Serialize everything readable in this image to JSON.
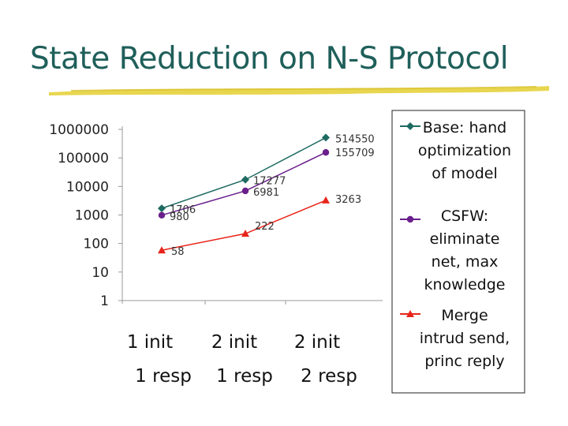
{
  "slide": {
    "title": "State Reduction on N-S Protocol"
  },
  "colors": {
    "title": "#1f5f5a",
    "underline": "#e6d23c",
    "base_series": "#1e6b62",
    "csfw_series": "#6a1f8c",
    "merge_series": "#e8241a"
  },
  "chart_data": {
    "type": "line",
    "y_scale": "log",
    "ylim": [
      1,
      1000000
    ],
    "y_tick_labels": [
      "1",
      "10",
      "100",
      "1000",
      "10000",
      "100000",
      "1000000"
    ],
    "categories": [
      [
        "1 init",
        "1 resp"
      ],
      [
        "2 init",
        "1 resp"
      ],
      [
        "2 init",
        "2 resp"
      ]
    ],
    "series": [
      {
        "name": "Base: hand optimization of model",
        "legend_lines": [
          "Base: hand",
          "optimization",
          "of model"
        ],
        "marker": "diamond",
        "color": "#1e6b62",
        "values": [
          1706,
          17277,
          514550
        ],
        "labels": [
          "1706",
          "17277",
          "514550"
        ]
      },
      {
        "name": "CSFW: eliminate net, max knowledge",
        "legend_lines": [
          "CSFW:",
          "eliminate",
          "net, max",
          "knowledge"
        ],
        "marker": "circle",
        "color": "#6a1f8c",
        "values": [
          980,
          6981,
          155709
        ],
        "labels": [
          "980",
          "6981",
          "155709"
        ]
      },
      {
        "name": "Merge intrud send, princ reply",
        "legend_lines": [
          "Merge",
          "intrud send,",
          "princ reply"
        ],
        "marker": "triangle",
        "color": "#e8241a",
        "values": [
          58,
          222,
          3263
        ],
        "labels": [
          "58",
          "222",
          "3263"
        ]
      }
    ],
    "grid": false,
    "legend_position": "right"
  }
}
